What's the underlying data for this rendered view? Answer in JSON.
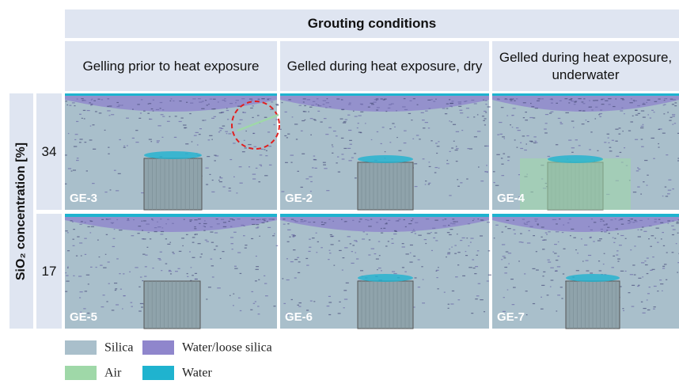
{
  "header": {
    "title": "Grouting conditions",
    "columns": [
      "Gelling prior to heat exposure",
      "Gelled during heat exposure, dry",
      "Gelled during heat exposure, underwater"
    ]
  },
  "row_axis_label": "SiO₂ concentration [%]",
  "rows": [
    {
      "label": "34",
      "panels": [
        "GE-3",
        "GE-2",
        "GE-4"
      ]
    },
    {
      "label": "17",
      "panels": [
        "GE-5",
        "GE-6",
        "GE-7"
      ]
    }
  ],
  "legend": [
    {
      "label": "Silica",
      "color": "#a9bfcb"
    },
    {
      "label": "Water/loose silica",
      "color": "#8f86cc"
    },
    {
      "label": "Air",
      "color": "#9fd8a8"
    },
    {
      "label": "Water",
      "color": "#1fb3cf"
    }
  ]
}
